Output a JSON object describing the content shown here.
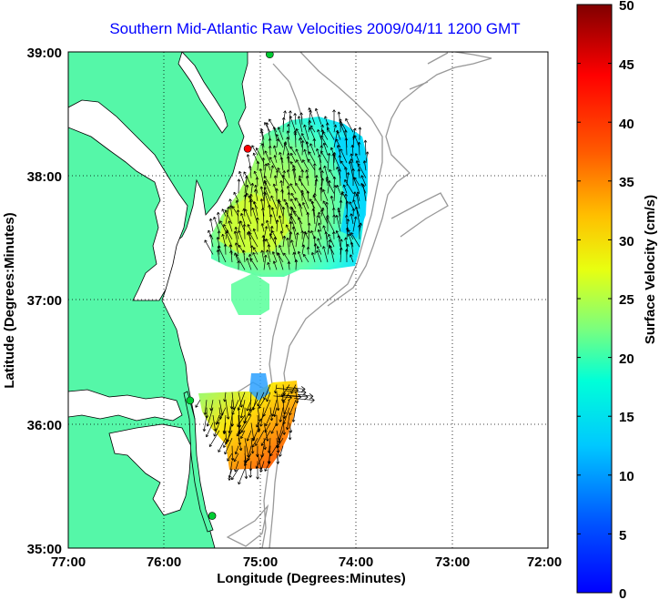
{
  "title": "Southern Mid-Atlantic Raw Velocities 2009/04/11 1200 GMT",
  "axes": {
    "x_label": "Longitude (Degrees:Minutes)",
    "y_label": "Latitude (Degrees:Minutes)",
    "x_ticks": [
      "77:00",
      "76:00",
      "75:00",
      "74:00",
      "73:00",
      "72:00"
    ],
    "y_ticks": [
      "39:00",
      "38:00",
      "37:00",
      "36:00",
      "35:00"
    ],
    "x_range": [
      -77,
      -72
    ],
    "y_range": [
      35,
      39
    ],
    "grid": "dotted"
  },
  "colorbar": {
    "label": "Surface Velocity (cm/s)",
    "ticks": [
      "0",
      "5",
      "10",
      "15",
      "20",
      "25",
      "30",
      "35",
      "40",
      "45",
      "50"
    ],
    "range": [
      0,
      50
    ],
    "colormap": "jet"
  },
  "colors": {
    "land": "#55f7a8",
    "title": "#0000ff",
    "coast_outline": "#000000",
    "bathymetry": "#999999",
    "vectors": "#000000"
  },
  "stations": [
    {
      "id": "site-1",
      "color": "#ff0000",
      "lon": -75.13,
      "lat": 38.22
    },
    {
      "id": "site-2",
      "color": "#00cc33",
      "lon": -74.9,
      "lat": 38.98
    },
    {
      "id": "site-3",
      "color": "#00cc33",
      "lon": -75.73,
      "lat": 36.19
    },
    {
      "id": "site-4",
      "color": "#00cc33",
      "lon": -75.5,
      "lat": 35.26
    }
  ]
}
